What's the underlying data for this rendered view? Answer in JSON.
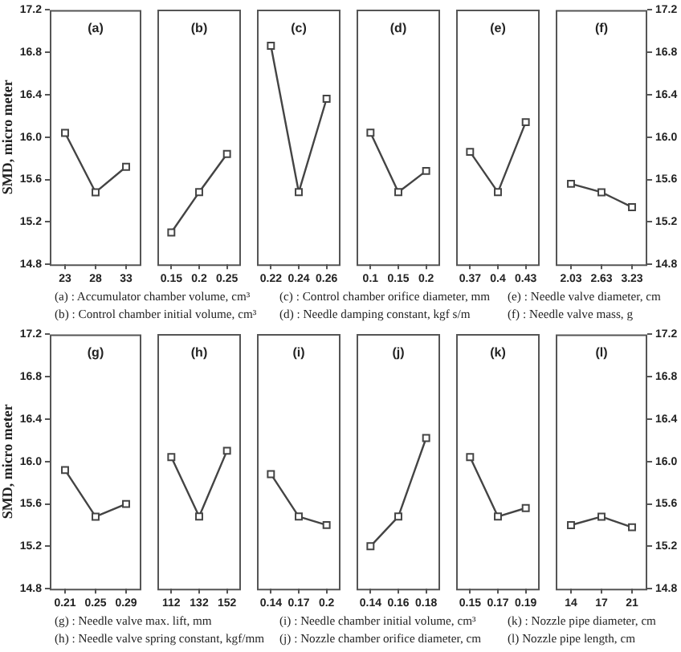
{
  "chart_data": [
    {
      "type": "line",
      "title": "(a)",
      "ylabel": "SMD, micro meter",
      "categories": [
        "23",
        "28",
        "33"
      ],
      "series": [
        {
          "color": "#444444",
          "values": [
            16.04,
            15.48,
            15.72
          ]
        }
      ],
      "ylim": [
        14.8,
        17.2
      ],
      "yticks": [
        14.8,
        15.2,
        15.6,
        {
          "value": 16,
          "label": "16.0"
        },
        16.4,
        16.8,
        17.2
      ],
      "marker": "square",
      "line_style": "solid",
      "annotations": [
        "(a) : Accumulator chamber volume, cm³",
        "(b) : Control chamber initial volume, cm³",
        "(c) : Control chamber orifice diameter, mm",
        "(d) : Needle damping constant, kgf s/m",
        "(e) : Needle valve diameter, cm",
        "(f) : Needle valve mass, g"
      ]
    },
    {
      "type": "line",
      "title": "(b)",
      "categories": [
        "0.15",
        "0.2",
        "0.25"
      ],
      "series": [
        {
          "color": "#444444",
          "values": [
            15.1,
            15.48,
            15.84
          ]
        }
      ],
      "ylim": [
        14.8,
        17.2
      ],
      "yticks": [
        14.8,
        15.2,
        15.6,
        16.0,
        16.4,
        16.8,
        17.2
      ],
      "tick_labels": "x",
      "marker": "square",
      "line_style": "solid"
    },
    {
      "type": "line",
      "title": "(c)",
      "categories": [
        "0.22",
        "0.24",
        "0.26"
      ],
      "series": [
        {
          "color": "#444444",
          "values": [
            16.86,
            15.48,
            16.36
          ]
        }
      ],
      "ylim": [
        14.8,
        17.2
      ],
      "yticks": [
        14.8,
        15.2,
        15.6,
        16.0,
        16.4,
        16.8,
        17.2
      ],
      "tick_labels": "x",
      "marker": "square",
      "line_style": "solid"
    },
    {
      "type": "line",
      "title": "(d)",
      "categories": [
        "0.1",
        "0.15",
        "0.2"
      ],
      "series": [
        {
          "color": "#444444",
          "values": [
            16.04,
            15.48,
            15.68
          ]
        }
      ],
      "ylim": [
        14.8,
        17.2
      ],
      "yticks": [
        14.8,
        15.2,
        15.6,
        16.0,
        16.4,
        16.8,
        17.2
      ],
      "tick_labels": "x",
      "marker": "square",
      "line_style": "solid"
    },
    {
      "type": "line",
      "title": "(e)",
      "categories": [
        "0.37",
        "0.4",
        "0.43"
      ],
      "series": [
        {
          "color": "#444444",
          "values": [
            15.86,
            15.48,
            16.14
          ]
        }
      ],
      "ylim": [
        14.8,
        17.2
      ],
      "yticks": [
        14.8,
        15.2,
        15.6,
        16.0,
        16.4,
        16.8,
        17.2
      ],
      "tick_labels": "x",
      "marker": "square",
      "line_style": "solid"
    },
    {
      "type": "line",
      "title": "(f)",
      "categories": [
        "2.03",
        "2.63",
        "3.23"
      ],
      "series": [
        {
          "color": "#444444",
          "values": [
            15.56,
            15.48,
            15.34
          ],
          "axis": "y2"
        }
      ],
      "y2lim": [
        14.8,
        17.2
      ],
      "y2ticks": [
        14.8,
        15.2,
        15.6,
        {
          "value": 16,
          "label": "16.0"
        },
        16.4,
        16.8,
        17.2
      ],
      "marker": "square",
      "line_style": "solid"
    },
    {
      "type": "line",
      "title": "(g)",
      "ylabel": "SMD, micro meter",
      "categories": [
        "0.21",
        "0.25",
        "0.29"
      ],
      "series": [
        {
          "color": "#444444",
          "values": [
            15.92,
            15.48,
            15.6
          ]
        }
      ],
      "ylim": [
        14.8,
        17.2
      ],
      "yticks": [
        14.8,
        15.2,
        15.6,
        {
          "value": 16,
          "label": "16.0"
        },
        16.4,
        16.8,
        17.2
      ],
      "marker": "square",
      "line_style": "solid",
      "annotations": [
        "(g) : Needle valve max. lift, mm",
        "(h) : Needle valve spring constant, kgf/mm",
        "(i) : Needle chamber initial volume, cm³",
        "(j) : Nozzle chamber orifice diameter, cm",
        "(k) : Nozzle pipe diameter, cm",
        "(l) Nozzle pipe length, cm"
      ]
    },
    {
      "type": "line",
      "title": "(h)",
      "categories": [
        "112",
        "132",
        "152"
      ],
      "series": [
        {
          "color": "#444444",
          "values": [
            16.04,
            15.48,
            16.1
          ]
        }
      ],
      "ylim": [
        14.8,
        17.2
      ],
      "yticks": [
        14.8,
        15.2,
        15.6,
        16.0,
        16.4,
        16.8,
        17.2
      ],
      "tick_labels": "x",
      "marker": "square",
      "line_style": "solid"
    },
    {
      "type": "line",
      "title": "(i)",
      "categories": [
        "0.14",
        "0.17",
        "0.2"
      ],
      "series": [
        {
          "color": "#444444",
          "values": [
            15.88,
            15.48,
            15.4
          ]
        }
      ],
      "ylim": [
        14.8,
        17.2
      ],
      "yticks": [
        14.8,
        15.2,
        15.6,
        16.0,
        16.4,
        16.8,
        17.2
      ],
      "tick_labels": "x",
      "marker": "square",
      "line_style": "solid"
    },
    {
      "type": "line",
      "title": "(j)",
      "categories": [
        "0.14",
        "0.16",
        "0.18"
      ],
      "series": [
        {
          "color": "#444444",
          "values": [
            15.2,
            15.48,
            16.22
          ]
        }
      ],
      "ylim": [
        14.8,
        17.2
      ],
      "yticks": [
        14.8,
        15.2,
        15.6,
        16.0,
        16.4,
        16.8,
        17.2
      ],
      "tick_labels": "x",
      "marker": "square",
      "line_style": "solid"
    },
    {
      "type": "line",
      "title": "(k)",
      "categories": [
        "0.15",
        "0.17",
        "0.19"
      ],
      "series": [
        {
          "color": "#444444",
          "values": [
            16.04,
            15.48,
            15.56
          ]
        }
      ],
      "ylim": [
        14.8,
        17.2
      ],
      "yticks": [
        14.8,
        15.2,
        15.6,
        16.0,
        16.4,
        16.8,
        17.2
      ],
      "tick_labels": "x",
      "marker": "square",
      "line_style": "solid"
    },
    {
      "type": "line",
      "title": "(l)",
      "categories": [
        "14",
        "17",
        "21"
      ],
      "series": [
        {
          "color": "#444444",
          "values": [
            15.4,
            15.48,
            15.38
          ],
          "axis": "y2"
        }
      ],
      "y2lim": [
        14.8,
        17.2
      ],
      "y2ticks": [
        14.8,
        15.2,
        15.6,
        {
          "value": 16,
          "label": "16.0"
        },
        16.4,
        16.8,
        17.2
      ],
      "marker": "square",
      "line_style": "solid"
    }
  ]
}
